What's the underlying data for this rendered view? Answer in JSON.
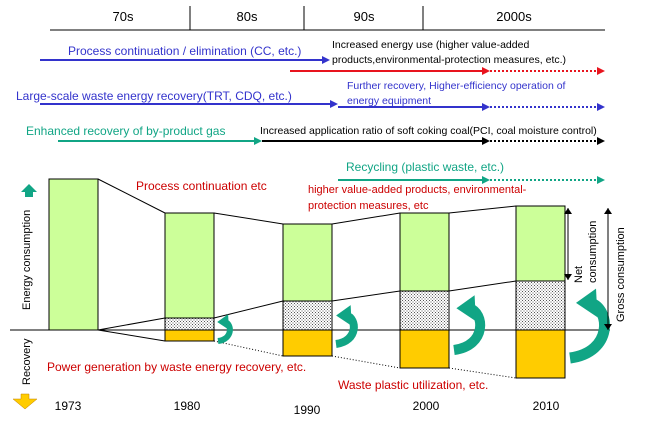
{
  "decades": [
    "70s",
    "80s",
    "90s",
    "2000s"
  ],
  "measures": [
    {
      "label": "Process continuation / elimination (CC, etc.)",
      "color": "#3333cc"
    },
    {
      "label": "Increased energy use (higher value-added products,environmental-protection measures, etc.)",
      "color": "#e8141e"
    },
    {
      "label": "Large-scale waste energy recovery(TRT, CDQ, etc.)",
      "color": "#3333cc"
    },
    {
      "label": "Further recovery, Higher-efficiency operation of energy equipment",
      "color": "#3333cc"
    },
    {
      "label": "Enhanced recovery of by-product gas",
      "color": "#11a585"
    },
    {
      "label": "Increased application ratio of soft coking coal(PCI, coal moisture control)",
      "color": "#000000"
    },
    {
      "label": "Recycling (plastic waste, etc.)",
      "color": "#11a585"
    }
  ],
  "measure_lines": {
    "cc": [
      "Process continuation / elimination (CC, etc.)"
    ],
    "increased_energy": [
      "Increased energy use (higher value-added",
      "products,environmental-protection measures, etc.)"
    ],
    "waste_recovery": [
      "Large-scale waste energy recovery(TRT, CDQ, etc.)"
    ],
    "further_recovery": [
      "Further recovery, Higher-efficiency operation of",
      "energy equipment"
    ],
    "byproduct_gas": [
      "Enhanced recovery of by-product gas"
    ],
    "soft_coking": [
      "Increased application ratio of soft coking coal(PCI, coal moisture control)"
    ],
    "recycling": [
      "Recycling (plastic waste, etc.)"
    ]
  },
  "annotations": {
    "process_continuation": "Process continuation etc",
    "higher_value": [
      "higher value-added products, environmental-",
      "protection measures, etc"
    ],
    "power_generation": "Power generation by waste energy recovery, etc.",
    "waste_plastic": "Waste plastic utilization, etc."
  },
  "axis_labels": {
    "energy_consumption": "Energy consumption",
    "recovery": "Recovery",
    "net_consumption": [
      "Net",
      "consumption"
    ],
    "gross_consumption": "Gross consumption"
  },
  "years": [
    "1973",
    "1980",
    "1990",
    "2000",
    "2010"
  ],
  "colors": {
    "net": "#ccff99",
    "added": "#d9d9d9",
    "recovery": "#ffcc00",
    "red_text": "#cc0000",
    "teal": "#11a585",
    "blue": "#3333cc",
    "red_arrow": "#e8141e"
  }
}
